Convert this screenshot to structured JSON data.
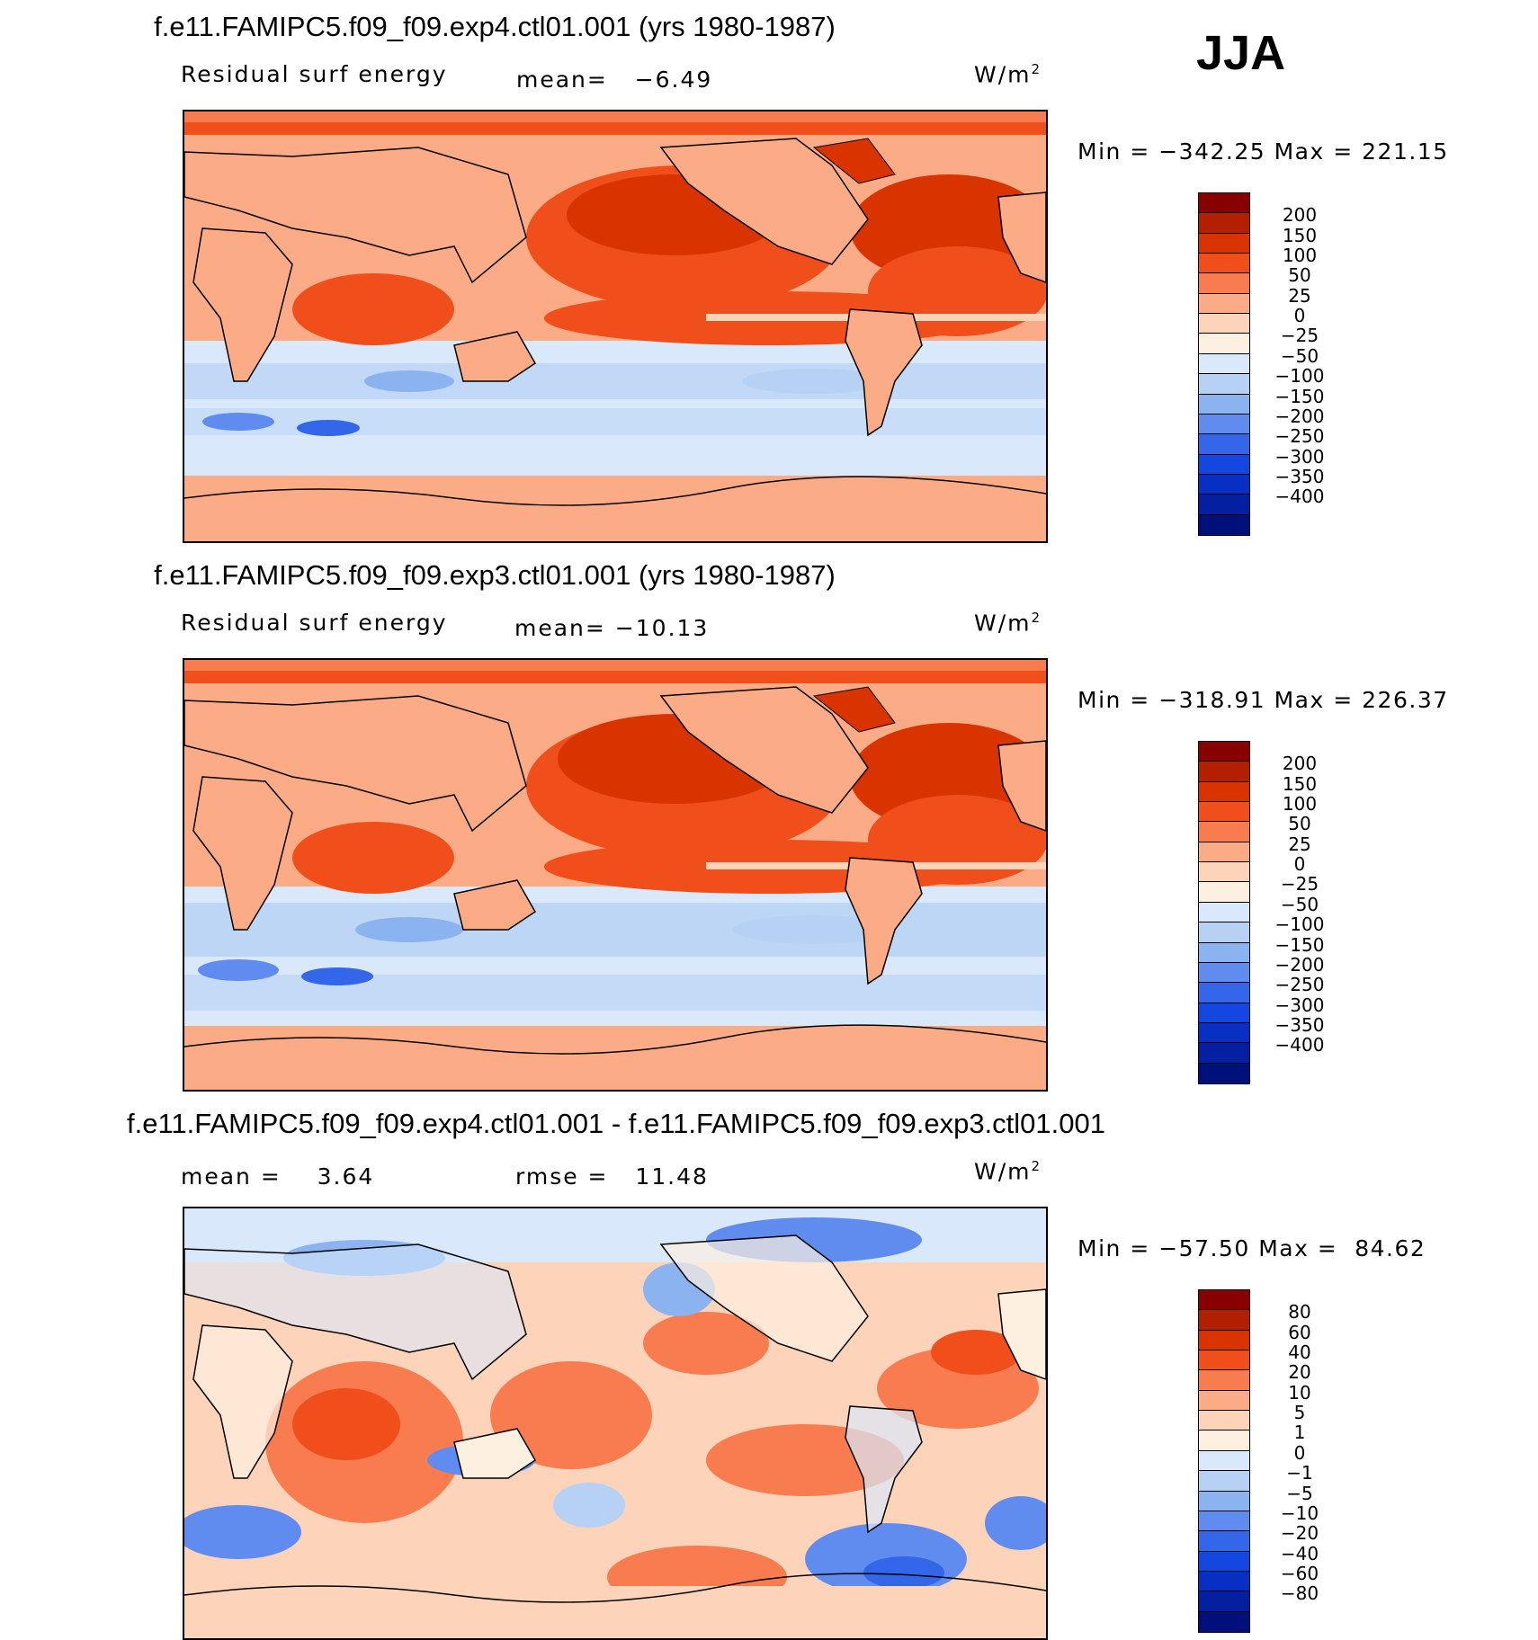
{
  "season": "JJA",
  "units": "W/m",
  "units_sup": "2",
  "panels": [
    {
      "title": "f.e11.FAMIPC5.f09_f09.exp4.ctl01.001 (yrs 1980-1987)",
      "variable": "Residual surf energy",
      "mean_label": "mean=",
      "mean_value": "−6.49",
      "min_label": "Min =",
      "min_value": "−342.25",
      "max_label": "Max =",
      "max_value": "221.15",
      "colorbar": {
        "colors": [
          "#890000",
          "#b32000",
          "#d93400",
          "#f04e1a",
          "#f97c50",
          "#fbac87",
          "#fdd3b9",
          "#fdf0e1",
          "#d9e8fa",
          "#b7d1f4",
          "#8ab3f0",
          "#5f8cee",
          "#3366e8",
          "#1447e0",
          "#082fc4",
          "#041fa0",
          "#00107a"
        ],
        "labels": [
          "200",
          "150",
          "100",
          "50",
          "25",
          "0",
          "−25",
          "−50",
          "−100",
          "−150",
          "−200",
          "−250",
          "−300",
          "−350",
          "−400"
        ]
      }
    },
    {
      "title": "f.e11.FAMIPC5.f09_f09.exp3.ctl01.001 (yrs 1980-1987)",
      "variable": "Residual surf energy",
      "mean_label": "mean=",
      "mean_value": "−10.13",
      "min_label": "Min =",
      "min_value": "−318.91",
      "max_label": "Max =",
      "max_value": "226.37",
      "colorbar": {
        "colors": [
          "#890000",
          "#b32000",
          "#d93400",
          "#f04e1a",
          "#f97c50",
          "#fbac87",
          "#fdd3b9",
          "#fdf0e1",
          "#d9e8fa",
          "#b7d1f4",
          "#8ab3f0",
          "#5f8cee",
          "#3366e8",
          "#1447e0",
          "#082fc4",
          "#041fa0",
          "#00107a"
        ],
        "labels": [
          "200",
          "150",
          "100",
          "50",
          "25",
          "0",
          "−25",
          "−50",
          "−100",
          "−150",
          "−200",
          "−250",
          "−300",
          "−350",
          "−400"
        ]
      }
    },
    {
      "title": "f.e11.FAMIPC5.f09_f09.exp4.ctl01.001 - f.e11.FAMIPC5.f09_f09.exp3.ctl01.001",
      "mean_label": "mean =",
      "mean_value": "3.64",
      "rmse_label": "rmse =",
      "rmse_value": "11.48",
      "min_label": "Min =",
      "min_value": "−57.50",
      "max_label": "Max =",
      "max_value": "84.62",
      "colorbar": {
        "colors": [
          "#890000",
          "#b32000",
          "#d93400",
          "#f04e1a",
          "#f97c50",
          "#fbac87",
          "#fdd3b9",
          "#fdf0e1",
          "#d9e8fa",
          "#b7d1f4",
          "#8ab3f0",
          "#5f8cee",
          "#3366e8",
          "#1447e0",
          "#082fc4",
          "#041fa0",
          "#00107a"
        ],
        "labels": [
          "80",
          "60",
          "40",
          "20",
          "10",
          "5",
          "1",
          "0",
          "−1",
          "−5",
          "−10",
          "−20",
          "−40",
          "−60",
          "−80"
        ]
      }
    }
  ]
}
